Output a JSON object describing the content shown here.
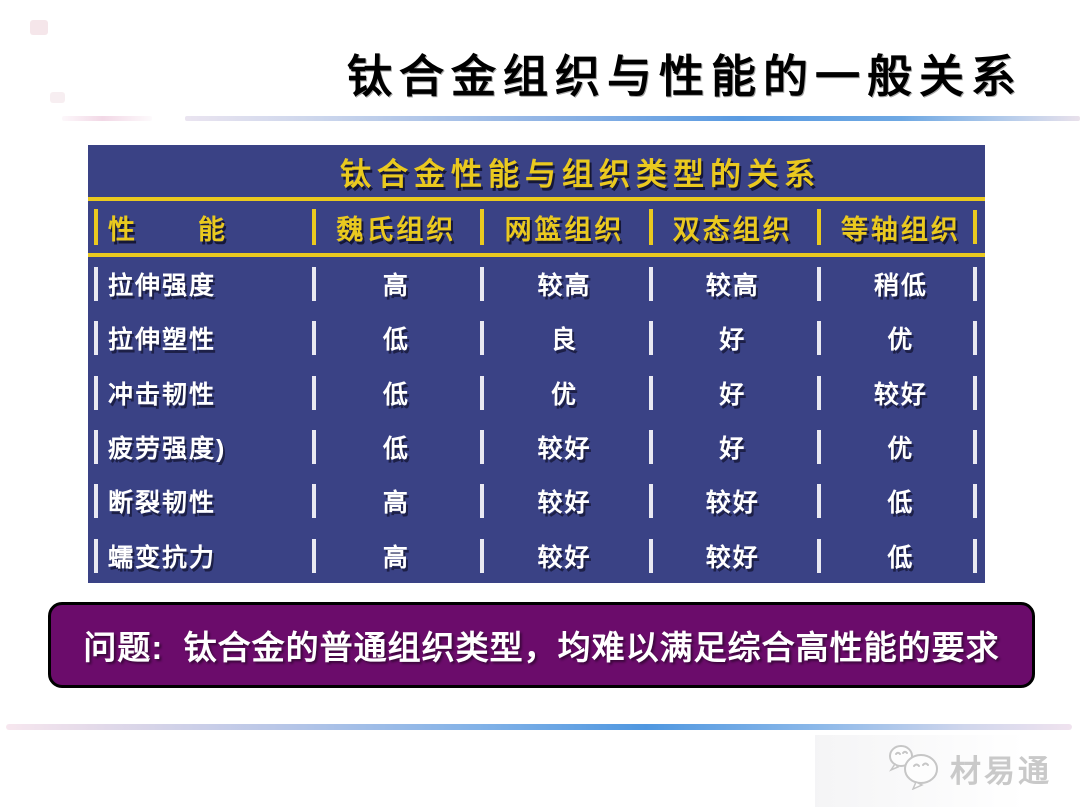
{
  "slide": {
    "title": "钛合金组织与性能的一般关系"
  },
  "table": {
    "title": "钛合金性能与组织类型的关系",
    "header": [
      "性　　能",
      "魏氏组织",
      "网篮组织",
      "双态组织",
      "等轴组织"
    ],
    "rows": [
      {
        "label": "拉伸强度",
        "values": [
          "高",
          "较高",
          "较高",
          "稍低"
        ]
      },
      {
        "label": "拉伸塑性",
        "values": [
          "低",
          "良",
          "好",
          "优"
        ]
      },
      {
        "label": "冲击韧性",
        "values": [
          "低",
          "优",
          "好",
          "较好"
        ]
      },
      {
        "label": "疲劳强度)",
        "values": [
          "低",
          "较好",
          "好",
          "优"
        ]
      },
      {
        "label": "断裂韧性",
        "values": [
          "高",
          "较好",
          "较好",
          "低"
        ]
      },
      {
        "label": "蠕变抗力",
        "values": [
          "高",
          "较好",
          "较好",
          "低"
        ]
      }
    ]
  },
  "callout": {
    "text": "问题:  钛合金的普通组织类型，均难以满足综合高性能的要求"
  },
  "watermark": {
    "label": "材易通",
    "icon": "wechat-chat-bubbles-icon"
  },
  "colors": {
    "title_text": "#000000",
    "table_bg": "#3a4285",
    "accent_yellow": "#eac91f",
    "table_text": "#ffffff",
    "callout_bg": "#6b0c6b",
    "watermark_text": "#c9c9c9"
  }
}
